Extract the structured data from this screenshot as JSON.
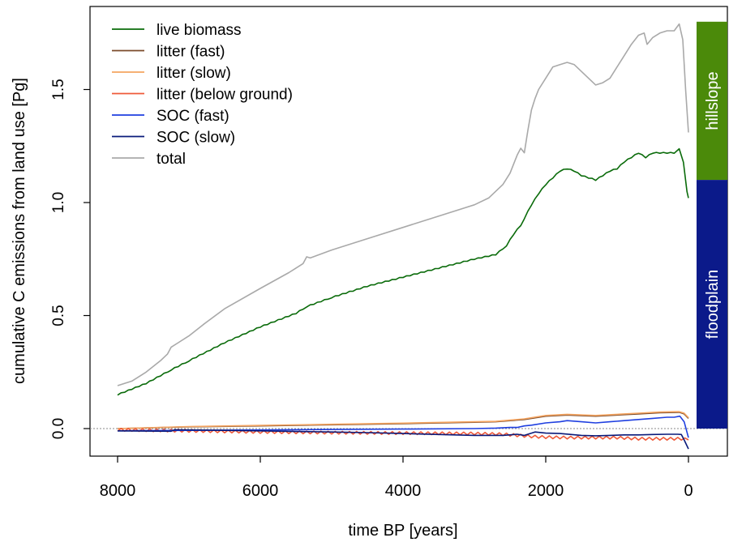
{
  "chart_data": {
    "type": "line",
    "title": "",
    "xlabel": "time BP [years]",
    "ylabel": "cumulative C emissions from land use [Pg]",
    "xlim": [
      8000,
      0
    ],
    "ylim": [
      -0.1,
      1.9
    ],
    "x_reversed": true,
    "x_ticks": [
      8000,
      6000,
      4000,
      2000,
      0
    ],
    "x_tick_labels": [
      "8000",
      "6000",
      "4000",
      "2000",
      "0"
    ],
    "y_ticks": [
      0.0,
      0.5,
      1.0,
      1.5
    ],
    "y_tick_labels": [
      "0.0",
      "0.5",
      "1.0",
      "1.5"
    ],
    "zero_reference_line": true,
    "grid": false,
    "legend_position": "top-left",
    "series": [
      {
        "name": "live biomass",
        "color": "#0a6b0a",
        "points": [
          [
            8000,
            0.15
          ],
          [
            7600,
            0.2
          ],
          [
            7250,
            0.26
          ],
          [
            7000,
            0.3
          ],
          [
            6500,
            0.38
          ],
          [
            6000,
            0.45
          ],
          [
            5500,
            0.51
          ],
          [
            5350,
            0.54
          ],
          [
            5000,
            0.58
          ],
          [
            4500,
            0.63
          ],
          [
            4000,
            0.67
          ],
          [
            3500,
            0.71
          ],
          [
            3000,
            0.75
          ],
          [
            2700,
            0.77
          ],
          [
            2550,
            0.81
          ],
          [
            2450,
            0.86
          ],
          [
            2350,
            0.9
          ],
          [
            2300,
            0.93
          ],
          [
            2200,
            0.99
          ],
          [
            2100,
            1.04
          ],
          [
            2000,
            1.08
          ],
          [
            1900,
            1.11
          ],
          [
            1800,
            1.14
          ],
          [
            1700,
            1.15
          ],
          [
            1600,
            1.14
          ],
          [
            1500,
            1.12
          ],
          [
            1400,
            1.11
          ],
          [
            1300,
            1.1
          ],
          [
            1200,
            1.12
          ],
          [
            1100,
            1.14
          ],
          [
            1000,
            1.15
          ],
          [
            900,
            1.18
          ],
          [
            800,
            1.2
          ],
          [
            700,
            1.22
          ],
          [
            600,
            1.2
          ],
          [
            500,
            1.22
          ],
          [
            400,
            1.22
          ],
          [
            300,
            1.22
          ],
          [
            200,
            1.22
          ],
          [
            130,
            1.24
          ],
          [
            70,
            1.18
          ],
          [
            20,
            1.05
          ],
          [
            0,
            1.02
          ]
        ]
      },
      {
        "name": "litter (fast)",
        "color": "#7a4a2a",
        "points": [
          [
            8000,
            0.0
          ],
          [
            7000,
            0.008
          ],
          [
            6000,
            0.012
          ],
          [
            5000,
            0.017
          ],
          [
            4000,
            0.022
          ],
          [
            3000,
            0.028
          ],
          [
            2700,
            0.03
          ],
          [
            2300,
            0.04
          ],
          [
            2000,
            0.055
          ],
          [
            1700,
            0.06
          ],
          [
            1300,
            0.055
          ],
          [
            1000,
            0.06
          ],
          [
            700,
            0.065
          ],
          [
            400,
            0.07
          ],
          [
            130,
            0.072
          ],
          [
            60,
            0.065
          ],
          [
            0,
            0.045
          ]
        ]
      },
      {
        "name": "litter (slow)",
        "color": "#f4a460",
        "points": [
          [
            8000,
            0.0
          ],
          [
            7000,
            0.009
          ],
          [
            6000,
            0.014
          ],
          [
            5000,
            0.019
          ],
          [
            4000,
            0.024
          ],
          [
            3000,
            0.03
          ],
          [
            2700,
            0.032
          ],
          [
            2300,
            0.043
          ],
          [
            2000,
            0.058
          ],
          [
            1700,
            0.063
          ],
          [
            1300,
            0.058
          ],
          [
            1000,
            0.063
          ],
          [
            700,
            0.068
          ],
          [
            400,
            0.073
          ],
          [
            130,
            0.075
          ],
          [
            60,
            0.068
          ],
          [
            0,
            0.048
          ]
        ]
      },
      {
        "name": "litter (below ground)",
        "color": "#ef5a3a",
        "points": [
          [
            8000,
            -0.005
          ],
          [
            7000,
            -0.01
          ],
          [
            6000,
            -0.015
          ],
          [
            5000,
            -0.018
          ],
          [
            4000,
            -0.02
          ],
          [
            3000,
            -0.022
          ],
          [
            2600,
            -0.025
          ],
          [
            2400,
            -0.03
          ],
          [
            2200,
            -0.035
          ],
          [
            2000,
            -0.038
          ],
          [
            1700,
            -0.04
          ],
          [
            1300,
            -0.04
          ],
          [
            1000,
            -0.04
          ],
          [
            700,
            -0.045
          ],
          [
            400,
            -0.045
          ],
          [
            100,
            -0.045
          ],
          [
            0,
            -0.05
          ]
        ]
      },
      {
        "name": "SOC (fast)",
        "color": "#1f3fe0",
        "points": [
          [
            8000,
            -0.01
          ],
          [
            7000,
            -0.008
          ],
          [
            6000,
            -0.006
          ],
          [
            5000,
            -0.004
          ],
          [
            4000,
            -0.002
          ],
          [
            3000,
            0.0
          ],
          [
            2700,
            0.002
          ],
          [
            2500,
            0.005
          ],
          [
            2400,
            0.005
          ],
          [
            2300,
            0.012
          ],
          [
            2200,
            0.015
          ],
          [
            2000,
            0.025
          ],
          [
            1800,
            0.03
          ],
          [
            1700,
            0.035
          ],
          [
            1500,
            0.03
          ],
          [
            1300,
            0.025
          ],
          [
            1100,
            0.03
          ],
          [
            900,
            0.035
          ],
          [
            700,
            0.04
          ],
          [
            500,
            0.045
          ],
          [
            300,
            0.05
          ],
          [
            200,
            0.05
          ],
          [
            120,
            0.055
          ],
          [
            60,
            0.03
          ],
          [
            0,
            -0.04
          ]
        ]
      },
      {
        "name": "SOC (slow)",
        "color": "#0a1a7a",
        "points": [
          [
            8000,
            -0.01
          ],
          [
            7250,
            -0.012
          ],
          [
            7200,
            -0.005
          ],
          [
            6500,
            -0.008
          ],
          [
            6000,
            -0.01
          ],
          [
            5000,
            -0.015
          ],
          [
            4500,
            -0.018
          ],
          [
            4000,
            -0.022
          ],
          [
            3500,
            -0.026
          ],
          [
            3000,
            -0.03
          ],
          [
            2600,
            -0.03
          ],
          [
            2400,
            -0.025
          ],
          [
            2300,
            -0.03
          ],
          [
            2150,
            -0.015
          ],
          [
            2000,
            -0.02
          ],
          [
            1800,
            -0.022
          ],
          [
            1500,
            -0.03
          ],
          [
            1300,
            -0.032
          ],
          [
            1100,
            -0.03
          ],
          [
            900,
            -0.028
          ],
          [
            700,
            -0.028
          ],
          [
            500,
            -0.026
          ],
          [
            300,
            -0.025
          ],
          [
            150,
            -0.025
          ],
          [
            100,
            -0.026
          ],
          [
            60,
            -0.05
          ],
          [
            0,
            -0.09
          ]
        ]
      },
      {
        "name": "total",
        "color": "#a9a9a9",
        "points": [
          [
            8000,
            0.19
          ],
          [
            7800,
            0.21
          ],
          [
            7600,
            0.25
          ],
          [
            7400,
            0.3
          ],
          [
            7300,
            0.33
          ],
          [
            7250,
            0.36
          ],
          [
            7150,
            0.38
          ],
          [
            7000,
            0.41
          ],
          [
            6800,
            0.46
          ],
          [
            6500,
            0.53
          ],
          [
            6000,
            0.62
          ],
          [
            5600,
            0.69
          ],
          [
            5500,
            0.71
          ],
          [
            5400,
            0.73
          ],
          [
            5350,
            0.76
          ],
          [
            5300,
            0.755
          ],
          [
            5000,
            0.79
          ],
          [
            4500,
            0.84
          ],
          [
            4000,
            0.89
          ],
          [
            3500,
            0.94
          ],
          [
            3000,
            0.99
          ],
          [
            2800,
            1.02
          ],
          [
            2600,
            1.08
          ],
          [
            2500,
            1.13
          ],
          [
            2400,
            1.21
          ],
          [
            2350,
            1.24
          ],
          [
            2300,
            1.22
          ],
          [
            2250,
            1.32
          ],
          [
            2200,
            1.41
          ],
          [
            2150,
            1.46
          ],
          [
            2100,
            1.5
          ],
          [
            2000,
            1.55
          ],
          [
            1900,
            1.6
          ],
          [
            1800,
            1.61
          ],
          [
            1700,
            1.62
          ],
          [
            1600,
            1.61
          ],
          [
            1500,
            1.58
          ],
          [
            1400,
            1.55
          ],
          [
            1300,
            1.52
          ],
          [
            1200,
            1.53
          ],
          [
            1100,
            1.55
          ],
          [
            1000,
            1.6
          ],
          [
            900,
            1.65
          ],
          [
            800,
            1.7
          ],
          [
            700,
            1.74
          ],
          [
            620,
            1.75
          ],
          [
            580,
            1.7
          ],
          [
            500,
            1.73
          ],
          [
            400,
            1.75
          ],
          [
            300,
            1.76
          ],
          [
            200,
            1.76
          ],
          [
            130,
            1.79
          ],
          [
            80,
            1.72
          ],
          [
            40,
            1.5
          ],
          [
            0,
            1.31
          ]
        ]
      }
    ],
    "side_bars": [
      {
        "label": "hillslope",
        "color": "#4b8a0a",
        "from": 1.1,
        "to": 1.8
      },
      {
        "label": "floodplain",
        "color": "#0b1a8a",
        "from": 0.0,
        "to": 1.1
      }
    ]
  }
}
